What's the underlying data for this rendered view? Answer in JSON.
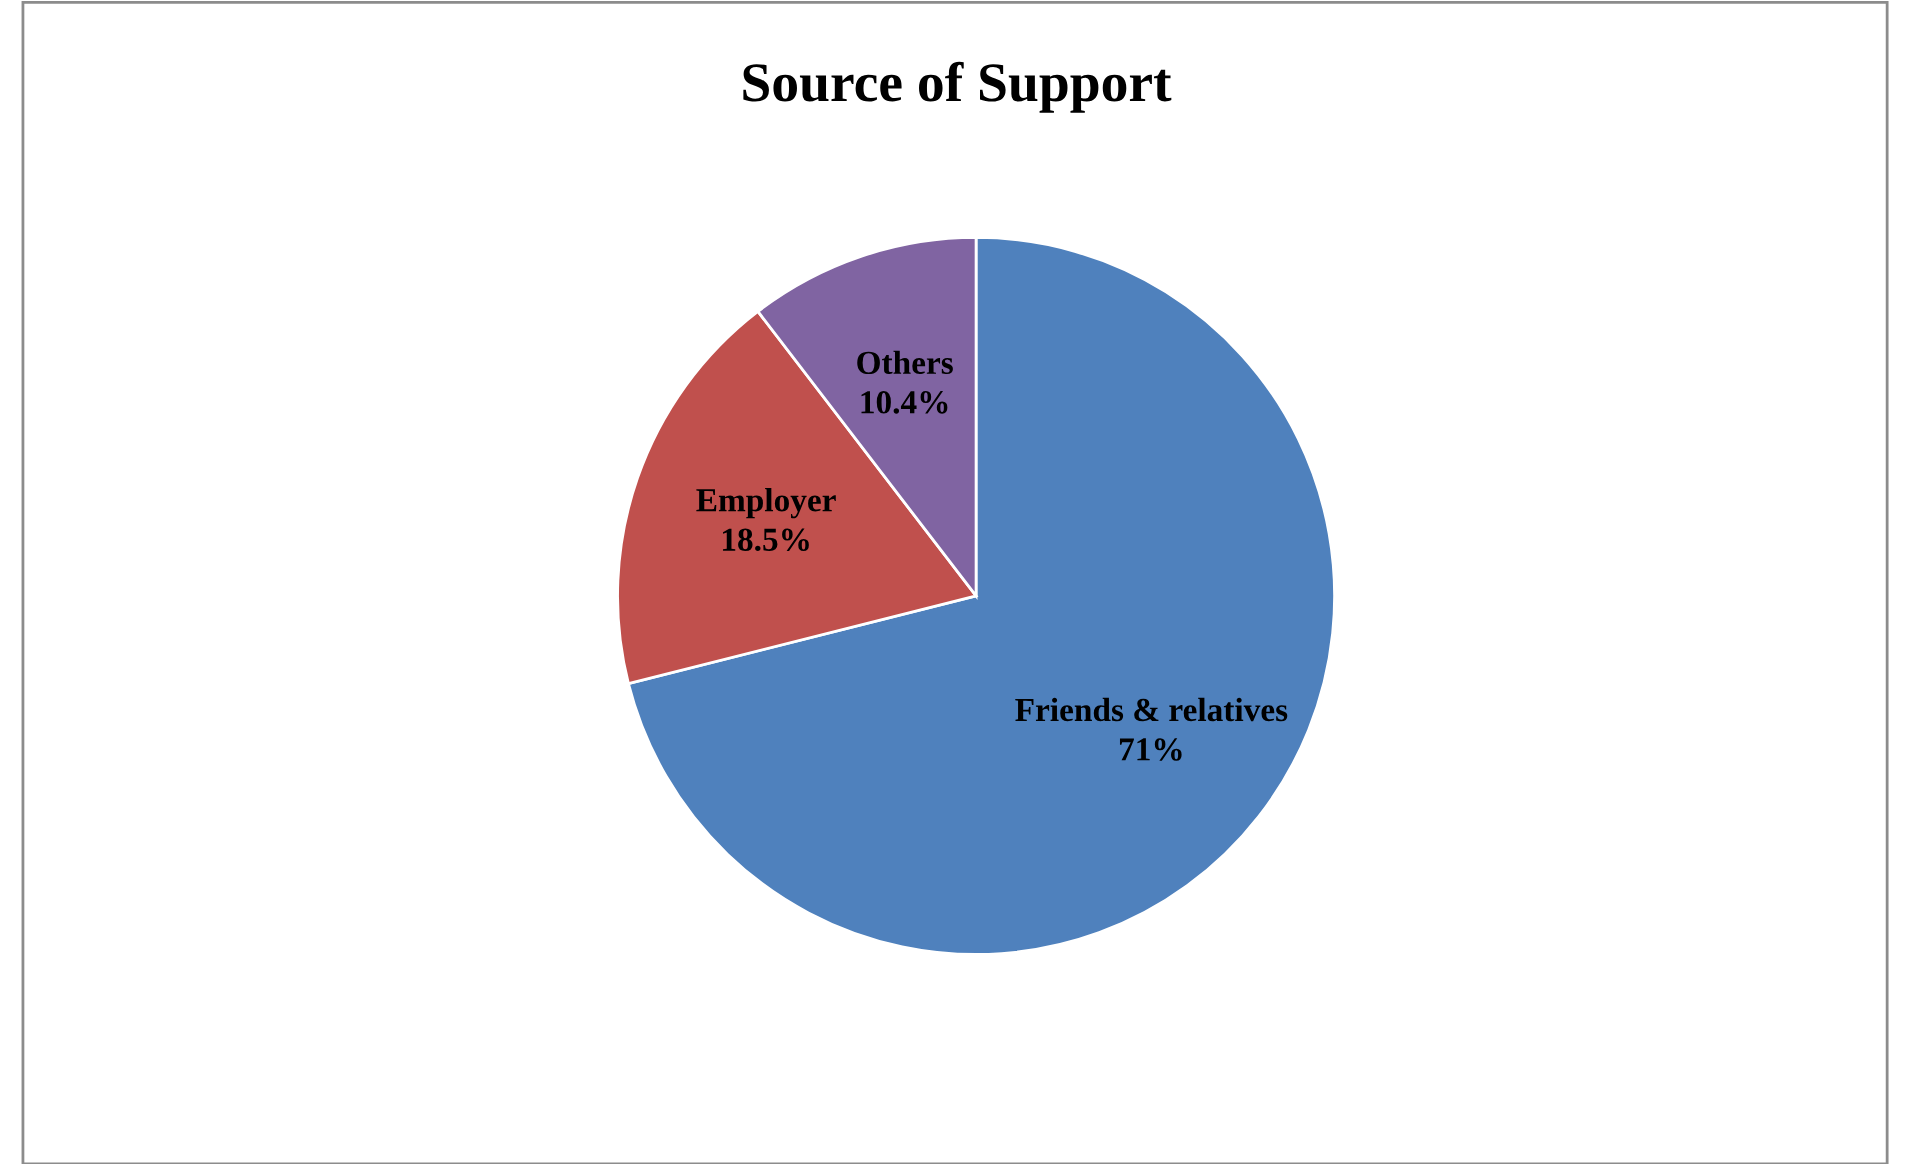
{
  "chart_data": {
    "type": "pie",
    "title": "Source of Support",
    "categories": [
      "Friends & relatives",
      "Employer",
      "Others"
    ],
    "values": [
      71,
      18.5,
      10.4
    ],
    "value_labels": [
      "71%",
      "18.5%",
      "10.4%"
    ],
    "colors": [
      "#4f81bd",
      "#c0504d",
      "#8064a2"
    ],
    "legend": false
  }
}
